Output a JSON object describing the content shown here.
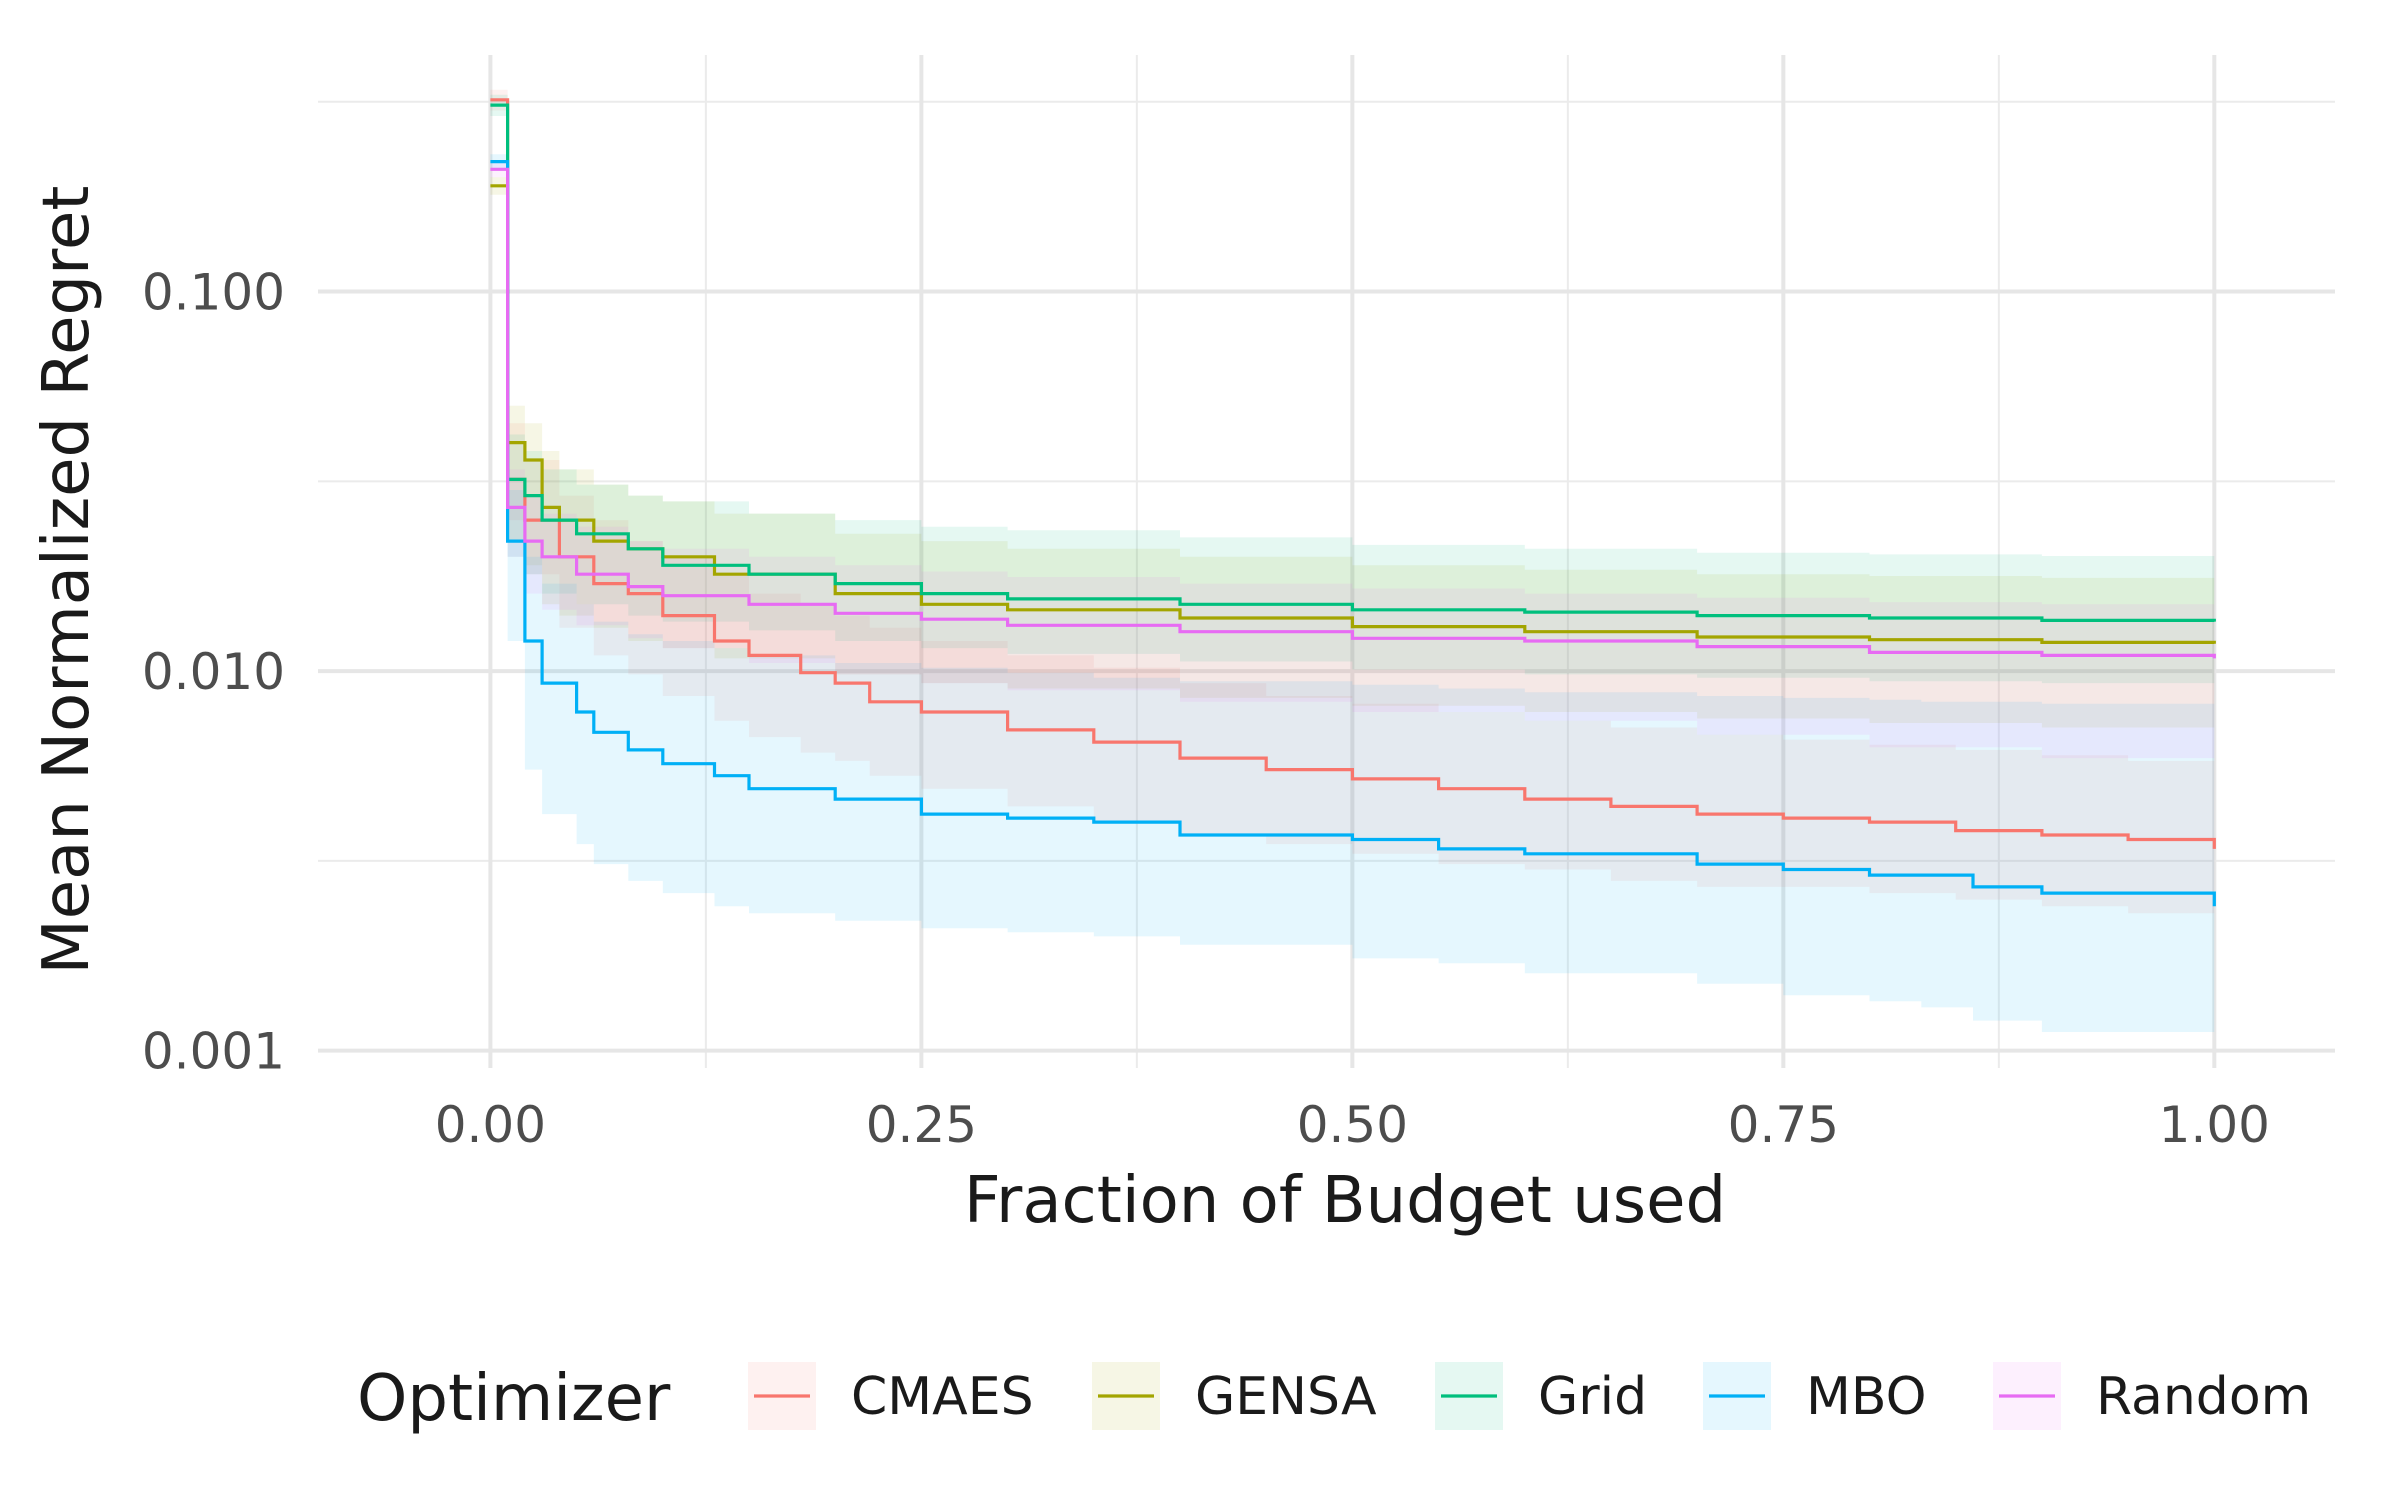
{
  "chart_data": {
    "type": "line",
    "xlabel": "Fraction of Budget used",
    "ylabel": "Mean Normalized Regret",
    "xlim": [
      -0.1,
      1.07
    ],
    "ylim": [
      0.0009,
      0.42
    ],
    "y_scale": "log",
    "x_ticks": [
      0.0,
      0.25,
      0.5,
      0.75,
      1.0
    ],
    "x_tick_labels": [
      "0.00",
      "0.25",
      "0.50",
      "0.75",
      "1.00"
    ],
    "y_ticks": [
      0.001,
      0.01,
      0.1
    ],
    "y_tick_labels": [
      "0.001",
      "0.010",
      "0.100"
    ],
    "grid": true,
    "legend_title": "Optimizer",
    "legend_position": "bottom",
    "series": [
      {
        "name": "CMAES",
        "color": "#F8766D",
        "band_opacity": 0.1,
        "x": [
          0,
          0.01,
          0.02,
          0.04,
          0.06,
          0.08,
          0.1,
          0.13,
          0.15,
          0.18,
          0.2,
          0.22,
          0.25,
          0.3,
          0.35,
          0.4,
          0.45,
          0.5,
          0.55,
          0.6,
          0.65,
          0.7,
          0.75,
          0.8,
          0.85,
          0.9,
          0.95,
          1.0
        ],
        "y": [
          0.32,
          0.032,
          0.025,
          0.02,
          0.017,
          0.016,
          0.014,
          0.012,
          0.011,
          0.0099,
          0.0093,
          0.0083,
          0.0078,
          0.007,
          0.0065,
          0.0059,
          0.0055,
          0.0052,
          0.0049,
          0.0046,
          0.0044,
          0.0042,
          0.0041,
          0.004,
          0.0038,
          0.0037,
          0.0036,
          0.0034
        ],
        "lower": [
          0.3,
          0.025,
          0.018,
          0.013,
          0.011,
          0.0098,
          0.0086,
          0.0074,
          0.0067,
          0.0061,
          0.0058,
          0.0053,
          0.0049,
          0.0044,
          0.004,
          0.0037,
          0.0035,
          0.0033,
          0.0031,
          0.003,
          0.0028,
          0.0027,
          0.0027,
          0.0026,
          0.0025,
          0.0024,
          0.0023,
          0.0022
        ],
        "upper": [
          0.34,
          0.045,
          0.036,
          0.029,
          0.025,
          0.022,
          0.02,
          0.018,
          0.016,
          0.015,
          0.014,
          0.013,
          0.012,
          0.011,
          0.0102,
          0.0093,
          0.0086,
          0.0082,
          0.0078,
          0.0074,
          0.0071,
          0.0068,
          0.0066,
          0.0064,
          0.0062,
          0.006,
          0.0058,
          0.0057
        ]
      },
      {
        "name": "GENSA",
        "color": "#A3A500",
        "band_opacity": 0.1,
        "x": [
          0,
          0.01,
          0.02,
          0.03,
          0.04,
          0.06,
          0.08,
          0.1,
          0.13,
          0.2,
          0.25,
          0.3,
          0.4,
          0.5,
          0.6,
          0.7,
          0.8,
          0.9,
          1.0
        ],
        "y": [
          0.19,
          0.04,
          0.036,
          0.027,
          0.025,
          0.022,
          0.021,
          0.02,
          0.018,
          0.016,
          0.015,
          0.0145,
          0.0138,
          0.0131,
          0.0127,
          0.0123,
          0.0121,
          0.0119,
          0.0118
        ],
        "lower": [
          0.18,
          0.022,
          0.019,
          0.015,
          0.014,
          0.013,
          0.012,
          0.0115,
          0.0108,
          0.0098,
          0.0093,
          0.009,
          0.0085,
          0.0081,
          0.0078,
          0.0075,
          0.0073,
          0.0071,
          0.007
        ],
        "upper": [
          0.2,
          0.05,
          0.045,
          0.038,
          0.034,
          0.031,
          0.029,
          0.028,
          0.026,
          0.023,
          0.022,
          0.021,
          0.02,
          0.019,
          0.0185,
          0.018,
          0.0178,
          0.0176,
          0.0175
        ]
      },
      {
        "name": "Grid",
        "color": "#00BF7D",
        "band_opacity": 0.1,
        "x": [
          0,
          0.01,
          0.02,
          0.03,
          0.05,
          0.08,
          0.1,
          0.15,
          0.2,
          0.25,
          0.3,
          0.4,
          0.5,
          0.6,
          0.7,
          0.8,
          0.9,
          1.0
        ],
        "y": [
          0.31,
          0.032,
          0.029,
          0.025,
          0.023,
          0.021,
          0.019,
          0.018,
          0.017,
          0.016,
          0.0155,
          0.015,
          0.0145,
          0.0143,
          0.014,
          0.0138,
          0.0136,
          0.0135
        ],
        "lower": [
          0.29,
          0.02,
          0.018,
          0.016,
          0.015,
          0.014,
          0.0135,
          0.0128,
          0.012,
          0.0115,
          0.0111,
          0.0106,
          0.0101,
          0.0098,
          0.0096,
          0.0094,
          0.0093,
          0.0092
        ],
        "upper": [
          0.33,
          0.042,
          0.038,
          0.034,
          0.031,
          0.029,
          0.028,
          0.026,
          0.025,
          0.024,
          0.0235,
          0.0225,
          0.0215,
          0.021,
          0.0205,
          0.0203,
          0.0201,
          0.02
        ]
      },
      {
        "name": "MBO",
        "color": "#00B0F6",
        "band_opacity": 0.1,
        "x": [
          0,
          0.01,
          0.02,
          0.03,
          0.05,
          0.06,
          0.08,
          0.1,
          0.13,
          0.15,
          0.2,
          0.25,
          0.3,
          0.35,
          0.4,
          0.5,
          0.55,
          0.6,
          0.7,
          0.75,
          0.8,
          0.83,
          0.86,
          0.9,
          1.0
        ],
        "y": [
          0.22,
          0.022,
          0.012,
          0.0093,
          0.0078,
          0.0069,
          0.0062,
          0.0057,
          0.0053,
          0.0049,
          0.0046,
          0.0042,
          0.0041,
          0.004,
          0.0037,
          0.0036,
          0.0034,
          0.0033,
          0.0031,
          0.003,
          0.0029,
          0.0029,
          0.0027,
          0.0026,
          0.0024
        ],
        "lower": [
          0.21,
          0.012,
          0.0055,
          0.0042,
          0.0035,
          0.0031,
          0.0028,
          0.0026,
          0.0024,
          0.0023,
          0.0022,
          0.0021,
          0.00205,
          0.002,
          0.0019,
          0.00175,
          0.0017,
          0.0016,
          0.0015,
          0.0014,
          0.00135,
          0.0013,
          0.0012,
          0.00112,
          0.00105
        ],
        "upper": [
          0.23,
          0.03,
          0.02,
          0.017,
          0.015,
          0.0135,
          0.0125,
          0.012,
          0.0115,
          0.011,
          0.0105,
          0.0102,
          0.0099,
          0.0096,
          0.0094,
          0.0092,
          0.009,
          0.0088,
          0.0086,
          0.0085,
          0.0084,
          0.0083,
          0.0083,
          0.0082,
          0.0082
        ]
      },
      {
        "name": "Random",
        "color": "#E76BF3",
        "band_opacity": 0.1,
        "x": [
          0,
          0.01,
          0.02,
          0.03,
          0.05,
          0.08,
          0.1,
          0.15,
          0.2,
          0.25,
          0.3,
          0.4,
          0.5,
          0.6,
          0.7,
          0.8,
          0.9,
          1.0
        ],
        "y": [
          0.21,
          0.027,
          0.022,
          0.02,
          0.018,
          0.0167,
          0.0158,
          0.015,
          0.0142,
          0.0137,
          0.0132,
          0.0127,
          0.0122,
          0.012,
          0.0116,
          0.0112,
          0.011,
          0.0108
        ],
        "lower": [
          0.2,
          0.02,
          0.016,
          0.0145,
          0.0132,
          0.0122,
          0.0115,
          0.0105,
          0.0098,
          0.0093,
          0.0089,
          0.0083,
          0.0078,
          0.0074,
          0.0068,
          0.0063,
          0.0059,
          0.0055
        ],
        "upper": [
          0.22,
          0.034,
          0.029,
          0.026,
          0.024,
          0.022,
          0.021,
          0.02,
          0.019,
          0.0183,
          0.0177,
          0.017,
          0.0165,
          0.016,
          0.0156,
          0.0152,
          0.015,
          0.0148
        ]
      }
    ]
  }
}
